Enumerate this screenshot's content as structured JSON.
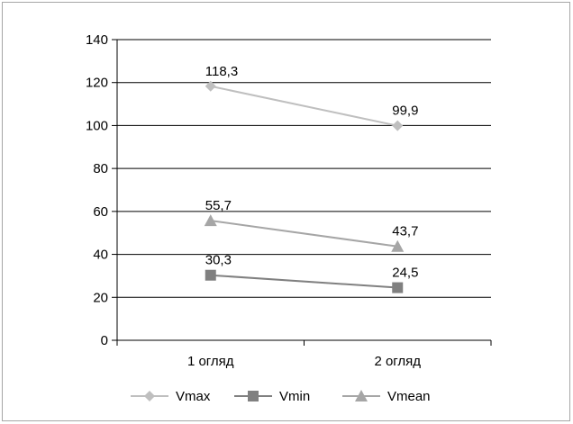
{
  "chart_data": {
    "type": "line",
    "title": "",
    "xlabel": "",
    "ylabel": "",
    "categories": [
      "1  огляд",
      "2  огляд"
    ],
    "ylim": [
      0,
      140
    ],
    "yticks": [
      0,
      20,
      40,
      60,
      80,
      100,
      120,
      140
    ],
    "grid": true,
    "legend_position": "bottom",
    "series": [
      {
        "name": "Vmax",
        "values": [
          118.3,
          99.9
        ],
        "labels": [
          "118,3",
          "99,9"
        ],
        "marker": "diamond",
        "color": "#bfbfbf"
      },
      {
        "name": "Vmin",
        "values": [
          30.3,
          24.5
        ],
        "labels": [
          "30,3",
          "24,5"
        ],
        "marker": "square",
        "color": "#808080"
      },
      {
        "name": "Vmean",
        "values": [
          55.7,
          43.7
        ],
        "labels": [
          "55,7",
          "43,7"
        ],
        "marker": "triangle",
        "color": "#a6a6a6"
      }
    ]
  }
}
